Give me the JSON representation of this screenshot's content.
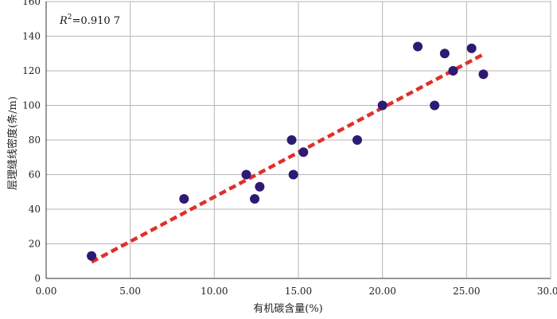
{
  "chart_data": {
    "type": "scatter",
    "title": "",
    "xlabel": "有机碳含量(%)",
    "ylabel": "层理缝线密度(条/m)",
    "xlim": [
      0,
      30
    ],
    "ylim": [
      0,
      160
    ],
    "x_ticks": [
      0,
      5,
      10,
      15,
      20,
      25,
      30
    ],
    "x_tick_labels": [
      "0.00",
      "5.00",
      "10.00",
      "15.00",
      "20.00",
      "25.00",
      "30.00"
    ],
    "y_ticks": [
      0,
      20,
      40,
      60,
      80,
      100,
      120,
      140,
      160
    ],
    "y_tick_labels": [
      "0",
      "20",
      "40",
      "60",
      "80",
      "100",
      "120",
      "140",
      "160"
    ],
    "grid": true,
    "annotation": {
      "r_symbol": "R",
      "r_exponent": "2",
      "r_value": "=0.910 7"
    },
    "points": [
      {
        "x": 2.7,
        "y": 13
      },
      {
        "x": 8.2,
        "y": 46
      },
      {
        "x": 11.9,
        "y": 60
      },
      {
        "x": 12.4,
        "y": 46
      },
      {
        "x": 12.7,
        "y": 53
      },
      {
        "x": 14.6,
        "y": 80
      },
      {
        "x": 14.7,
        "y": 60
      },
      {
        "x": 15.3,
        "y": 73
      },
      {
        "x": 18.5,
        "y": 80
      },
      {
        "x": 20.0,
        "y": 100
      },
      {
        "x": 22.1,
        "y": 134
      },
      {
        "x": 23.1,
        "y": 100
      },
      {
        "x": 23.7,
        "y": 130
      },
      {
        "x": 24.2,
        "y": 120
      },
      {
        "x": 25.3,
        "y": 133
      },
      {
        "x": 26.0,
        "y": 118
      }
    ],
    "trendline": {
      "style": "dashed",
      "x": [
        2.7,
        26.0
      ],
      "y": [
        9.5,
        129.5
      ]
    },
    "colors": {
      "points": "#2e1a73",
      "trendline": "#e0302a",
      "grid": "#b5b5b5",
      "axis": "#333333"
    }
  }
}
